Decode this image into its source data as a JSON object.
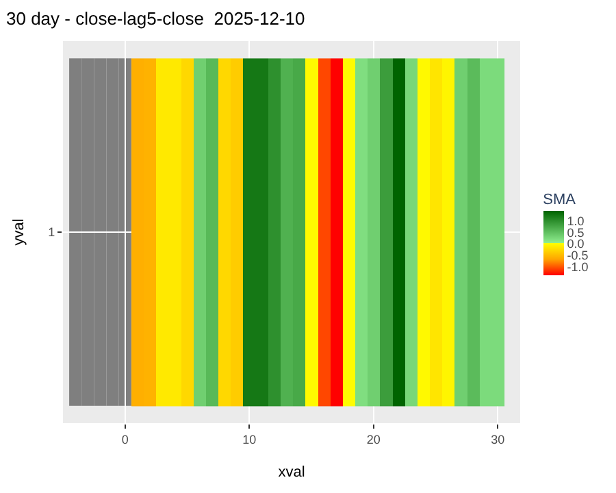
{
  "chart_data": {
    "type": "heatmap",
    "title": "30 day - close-lag5-close  2025-12-10",
    "xlabel": "xval",
    "ylabel": "yval",
    "clabel": "SMA",
    "x": [
      -4,
      -3,
      -2,
      -1,
      0,
      1,
      2,
      3,
      4,
      5,
      6,
      7,
      8,
      9,
      10,
      11,
      12,
      13,
      14,
      15,
      16,
      17,
      18,
      19,
      20,
      21,
      22,
      23,
      24,
      25,
      26,
      27,
      28,
      29,
      30
    ],
    "y_categories": [
      "1"
    ],
    "cells": [
      [
        null,
        null,
        null,
        null,
        null,
        -0.62,
        -0.6,
        -0.17,
        -0.17,
        -0.3,
        0.31,
        0.54,
        -0.3,
        -0.4,
        1.2,
        1.2,
        0.95,
        0.62,
        0.7,
        -0.05,
        -1.1,
        -1.4,
        -0.02,
        0.16,
        0.31,
        0.82,
        1.4,
        0.23,
        -0.05,
        -0.2,
        -0.08,
        0.31,
        0.52,
        0.19,
        0.19
      ]
    ],
    "xlim": [
      -5,
      31.8
    ],
    "xticks": [
      0,
      10,
      20,
      30
    ],
    "clim": [
      -1.4,
      1.4
    ],
    "cticks": [
      {
        "value": -1,
        "label": "-1.0"
      },
      {
        "value": -0.5,
        "label": "-0.5"
      },
      {
        "value": 0,
        "label": "0.0"
      },
      {
        "value": 0.5,
        "label": "0.5"
      },
      {
        "value": 1,
        "label": "1.0"
      }
    ],
    "grid": true
  }
}
